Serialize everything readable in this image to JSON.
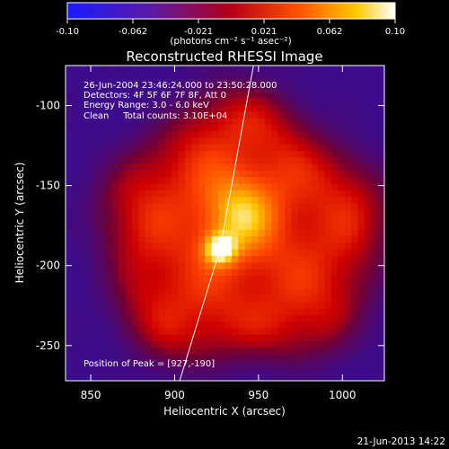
{
  "chart_data": {
    "type": "heatmap",
    "title": "Reconstructed RHESSI Image",
    "xlabel": "Heliocentric X (arcsec)",
    "ylabel": "Heliocentric Y (arcsec)",
    "xlim": [
      835,
      1025
    ],
    "ylim": [
      -272,
      -75
    ],
    "x_ticks": [
      850,
      900,
      950,
      1000
    ],
    "y_ticks": [
      -100,
      -150,
      -200,
      -250
    ],
    "colorbar": {
      "min": -0.1,
      "max": 0.1,
      "ticks": [
        "-0.10",
        "-0.062",
        "-0.021",
        "0.021",
        "0.062",
        "0.10"
      ],
      "units": "(photons cm⁻² s⁻¹ asec⁻²)",
      "colormap": "blue-purple-red-orange-yellow-white"
    },
    "annotations": [
      "26-Jun-2004 23:46:24.000 to 23:50:28.000",
      "Detectors: 4F 5F 6F 7F 8F, Att 0",
      "Energy Range: 3.0 - 6.0 keV",
      "Clean     Total counts: 3.10E+04"
    ],
    "peak_label": "Position of Peak = [927,-190]",
    "peak": {
      "x": 927,
      "y": -190
    },
    "limb_line": [
      [
        903,
        -272
      ],
      [
        927,
        -190
      ],
      [
        947,
        -75
      ]
    ],
    "source": {
      "center": [
        940,
        -180
      ],
      "radius_arcsec": 80,
      "background_level": 0.15,
      "disc_level": 0.62,
      "bright_core": {
        "x": 938,
        "y": -168,
        "level": 0.92
      },
      "peak_level": 1.0
    },
    "grid": false
  },
  "footer": {
    "date": "21-Jun-2013 14:22"
  }
}
